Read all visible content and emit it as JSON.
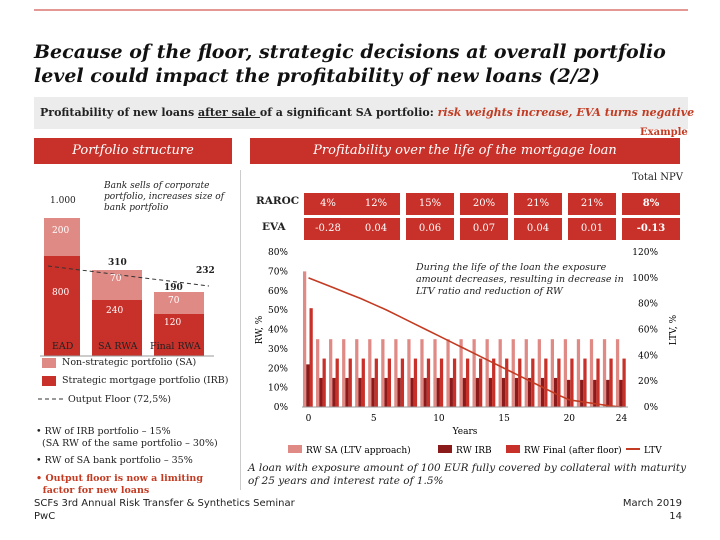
{
  "title_line1": "Because of the floor, strategic decisions at overall portfolio",
  "title_line2": "level could impact the profitability of new loans (2/2)",
  "subtitle": {
    "part1": "Profitability of new loans ",
    "underlined": "after sale ",
    "part2": "of a significant SA portfolio: ",
    "red": "risk weights increase, EVA turns negative"
  },
  "example_label": "Example",
  "left_panel": {
    "header": "Portfolio structure",
    "annotation": "Bank sells of corporate portfolio, increases size of bank portfolio",
    "val_1000": "1.000",
    "val_200": "200",
    "val_800": "800",
    "val_310": "310",
    "val_70a": "70",
    "val_240": "240",
    "val_232": "232",
    "val_190": "190",
    "val_70b": "70",
    "val_120": "120",
    "axis_ead": "EAD",
    "axis_sa": "SA RWA",
    "axis_final": "Final RWA",
    "legend_nonstrategic": "Non-strategic portfolio (SA)",
    "legend_strategic": "Strategic mortgage portfolio (IRB)",
    "legend_floor": "Output Floor (72,5%)",
    "bullet1_l1": "RW of IRB portfolio – 15%",
    "bullet1_l2": "(SA RW of the same portfolio – 30%)",
    "bullet2": "RW of SA bank portfolio – 35%",
    "bullet3_l1": "Output floor is now a limiting",
    "bullet3_l2": "factor for new loans",
    "colors": {
      "nonstrategic": "#e08a86",
      "strategic": "#c8312a"
    }
  },
  "right_panel": {
    "header": "Profitability over the life of the mortgage loan",
    "total_npv": "Total NPV",
    "raroc_label": "RAROC",
    "eva_label": "EVA",
    "raroc": [
      "4%",
      "12%",
      "15%",
      "20%",
      "21%",
      "21%",
      "8%"
    ],
    "eva": [
      "-0.28",
      "0.04",
      "0.06",
      "0.07",
      "0.04",
      "0.01",
      "-0.13"
    ]
  },
  "chart_data": {
    "type": "bar",
    "xlabel": "Years",
    "ylabel": "RW, %",
    "y2label": "LTV, %",
    "ylim": [
      0,
      80
    ],
    "y2lim": [
      0,
      120
    ],
    "yticks": [
      "0%",
      "10%",
      "20%",
      "30%",
      "40%",
      "50%",
      "60%",
      "70%",
      "80%"
    ],
    "y2ticks": [
      "0%",
      "20%",
      "40%",
      "60%",
      "80%",
      "100%",
      "120%"
    ],
    "xticks": [
      "0",
      "5",
      "10",
      "15",
      "20",
      "24"
    ],
    "years": [
      0,
      1,
      2,
      3,
      4,
      5,
      6,
      7,
      8,
      9,
      10,
      11,
      12,
      13,
      14,
      15,
      16,
      17,
      18,
      19,
      20,
      21,
      22,
      23,
      24
    ],
    "series": [
      {
        "name": "RW SA (LTV approach)",
        "color": "#e08a86",
        "values": [
          70,
          35,
          35,
          35,
          35,
          35,
          35,
          35,
          35,
          35,
          35,
          35,
          35,
          35,
          35,
          35,
          35,
          35,
          35,
          35,
          35,
          35,
          35,
          35,
          35
        ]
      },
      {
        "name": "RW IRB",
        "color": "#8b1a1a",
        "values": [
          22,
          15,
          15,
          15,
          15,
          15,
          15,
          15,
          15,
          15,
          15,
          15,
          15,
          15,
          15,
          15,
          15,
          15,
          15,
          15,
          14,
          14,
          14,
          14,
          14
        ]
      },
      {
        "name": "RW Final (after floor)",
        "color": "#c8312a",
        "values": [
          51,
          25,
          25,
          25,
          25,
          25,
          25,
          25,
          25,
          25,
          25,
          25,
          25,
          25,
          25,
          25,
          25,
          25,
          25,
          25,
          25,
          25,
          25,
          25,
          25
        ]
      }
    ],
    "ltv": {
      "name": "LTV",
      "color": "#c23b22",
      "values": [
        100,
        96,
        92,
        88,
        84,
        79.5,
        75,
        70,
        65,
        60,
        55,
        50,
        45,
        40,
        35,
        30,
        25,
        20,
        15,
        10,
        5.5,
        4,
        2.5,
        1,
        0
      ]
    },
    "annotation": "During the life of the loan the exposure amount decreases, resulting in decrease in LTV ratio and reduction of RW"
  },
  "caption": "A loan with exposure amount of 100 EUR fully covered by collateral with maturity of 25 years and interest rate of 1.5%",
  "footer_left1": "SCFs 3rd Annual Risk Transfer & Synthetics Seminar",
  "footer_left2": "PwC",
  "footer_right1": "March 2019",
  "footer_right2": "14"
}
